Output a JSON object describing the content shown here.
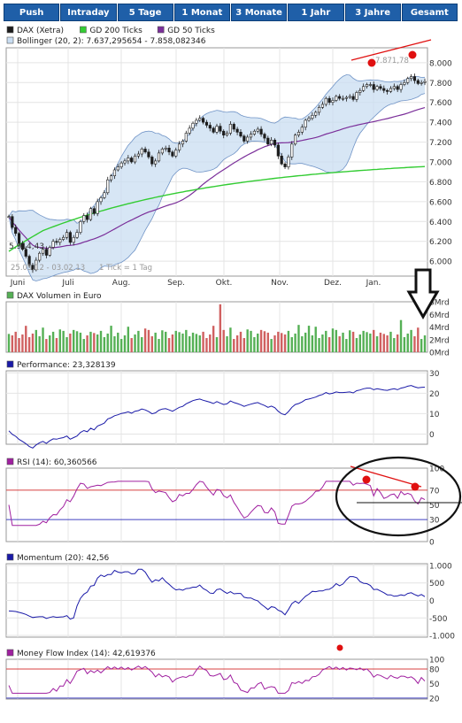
{
  "tabs": [
    "Push",
    "Intraday",
    "5 Tage",
    "1 Monat",
    "3 Monate",
    "1 Jahr",
    "3 Jahre",
    "Gesamt"
  ],
  "colors": {
    "tab_bg": "#1f5fa8",
    "price": "#1c1c1c",
    "bollinger_fill": "#c9ddf2",
    "bollinger_line": "#6f93c6",
    "gd200": "#33cc33",
    "gd50": "#7b2f9a",
    "volume_up": "#55b055",
    "volume_down": "#d06060",
    "indicator_line": "#1a1aa8",
    "rsi_line": "#a020a0",
    "ref_line_red": "#d84040",
    "ref_line_blue": "#4040c0",
    "annotation": "#e01010"
  },
  "chart_data": [
    {
      "type": "line",
      "legend": [
        {
          "label": "DAX (Xetra)",
          "color": "#1c1c1c"
        },
        {
          "label": "GD 200 Ticks",
          "color": "#33cc33"
        },
        {
          "label": "GD 50 Ticks",
          "color": "#7b2f9a"
        },
        {
          "label": "Bollinger (20, 2): 7.637,295654 - 7.858,082346",
          "color": "#c9ddf2"
        }
      ],
      "x_labels": [
        "Juni",
        "Juli",
        "Aug.",
        "Sep.",
        "Okt.",
        "Nov.",
        "Dez.",
        "Jan."
      ],
      "y_ticks": [
        "8.000",
        "7.800",
        "7.600",
        "7.400",
        "7.200",
        "7.000",
        "6.800",
        "6.600",
        "6.400",
        "6.200",
        "6.000"
      ],
      "ylim": [
        5850,
        8150
      ],
      "min_label": "5.914,43",
      "max_label": "7.871,78",
      "range_label": "25.05.12 - 03.02.13",
      "tick_label": "1 Tick = 1 Tag",
      "close": [
        6450,
        6340,
        6280,
        6180,
        6120,
        6050,
        5960,
        5914,
        6010,
        6080,
        6120,
        6060,
        6140,
        6200,
        6190,
        6220,
        6240,
        6290,
        6190,
        6240,
        6290,
        6400,
        6460,
        6420,
        6530,
        6480,
        6600,
        6640,
        6690,
        6820,
        6860,
        6920,
        6950,
        6990,
        7010,
        7040,
        7000,
        7060,
        7080,
        7130,
        7100,
        7050,
        6980,
        7010,
        7090,
        7130,
        7140,
        7100,
        7060,
        7120,
        7180,
        7210,
        7290,
        7340,
        7390,
        7420,
        7440,
        7400,
        7370,
        7340,
        7300,
        7360,
        7310,
        7270,
        7290,
        7380,
        7330,
        7300,
        7260,
        7210,
        7250,
        7280,
        7310,
        7330,
        7280,
        7240,
        7180,
        7220,
        7170,
        7060,
        6980,
        6950,
        7050,
        7180,
        7270,
        7300,
        7350,
        7420,
        7440,
        7470,
        7500,
        7550,
        7580,
        7640,
        7600,
        7620,
        7660,
        7640,
        7640,
        7650,
        7660,
        7630,
        7700,
        7720,
        7760,
        7780,
        7780,
        7730,
        7760,
        7740,
        7720,
        7710,
        7740,
        7760,
        7730,
        7780,
        7800,
        7840,
        7860,
        7820,
        7790,
        7800,
        7810
      ]
    },
    {
      "type": "bar",
      "legend": [
        {
          "label": "DAX Volumen in Euro",
          "color": "#55b055"
        }
      ],
      "y_ticks": [
        "8Mrd",
        "6Mrd",
        "4Mrd",
        "2Mrd",
        "0Mrd"
      ],
      "ylim": [
        0,
        8
      ]
    },
    {
      "type": "line",
      "legend": [
        {
          "label": "Performance: 23,328139",
          "color": "#1a1aa8"
        }
      ],
      "y_ticks": [
        "30",
        "20",
        "10",
        "0"
      ],
      "ylim": [
        -5,
        31
      ]
    },
    {
      "type": "line",
      "legend": [
        {
          "label": "RSI (14): 60,360566",
          "color": "#a020a0"
        }
      ],
      "y_ticks": [
        "100",
        "70",
        "50",
        "30",
        "0"
      ],
      "ylim": [
        0,
        100
      ]
    },
    {
      "type": "line",
      "legend": [
        {
          "label": "Momentum (20): 42,56",
          "color": "#1a1aa8"
        }
      ],
      "y_ticks": [
        "1.000",
        "500",
        "0",
        "-500",
        "-1.000"
      ],
      "ylim": [
        -1050,
        1050
      ]
    },
    {
      "type": "line",
      "legend": [
        {
          "label": "Money Flow Index (14): 42,619376",
          "color": "#a020a0"
        }
      ],
      "y_ticks": [
        "100",
        "80",
        "50",
        "20"
      ],
      "ylim": [
        18,
        100
      ]
    }
  ]
}
